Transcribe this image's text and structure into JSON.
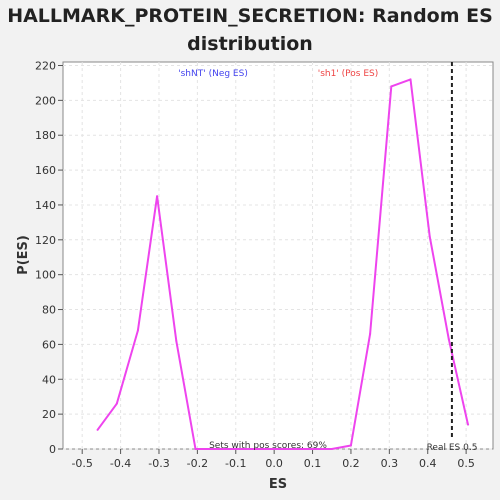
{
  "chart_data": {
    "type": "line",
    "title_line1": "HALLMARK_PROTEIN_SECRETION: Random ES",
    "title_line2": "distribution",
    "xlabel": "ES",
    "ylabel": "P(ES)",
    "xlim": [
      -0.55,
      0.57
    ],
    "ylim": [
      0,
      222
    ],
    "x_ticks": [
      "-0.5",
      "-0.4",
      "-0.3",
      "-0.2",
      "-0.1",
      "0.0",
      "0.1",
      "0.2",
      "0.3",
      "0.4",
      "0.5"
    ],
    "y_ticks": [
      "0",
      "20",
      "40",
      "60",
      "80",
      "100",
      "120",
      "140",
      "160",
      "180",
      "200",
      "220"
    ],
    "grid": true,
    "series": [
      {
        "color": "#ee44ee",
        "x": [
          -0.46,
          -0.41,
          -0.355,
          -0.305,
          -0.255,
          -0.205,
          -0.15,
          -0.1,
          -0.05,
          0.0,
          0.05,
          0.1,
          0.15,
          0.2,
          0.25,
          0.305,
          0.355,
          0.405,
          0.455,
          0.505
        ],
        "y": [
          11,
          26,
          68,
          145,
          62,
          0,
          0,
          0,
          0,
          0,
          0,
          0,
          0,
          2,
          66,
          208,
          212,
          122,
          63,
          14
        ]
      }
    ],
    "real_es": 0.463,
    "real_es_label": "Real ES 0.5",
    "neg_label": "'shNT' (Neg ES)",
    "pos_label": "'sh1' (Pos ES)",
    "neg_color": "#4444ee",
    "pos_color": "#ee4444",
    "pos_scores_note": "Sets with pos scores: 69%"
  }
}
